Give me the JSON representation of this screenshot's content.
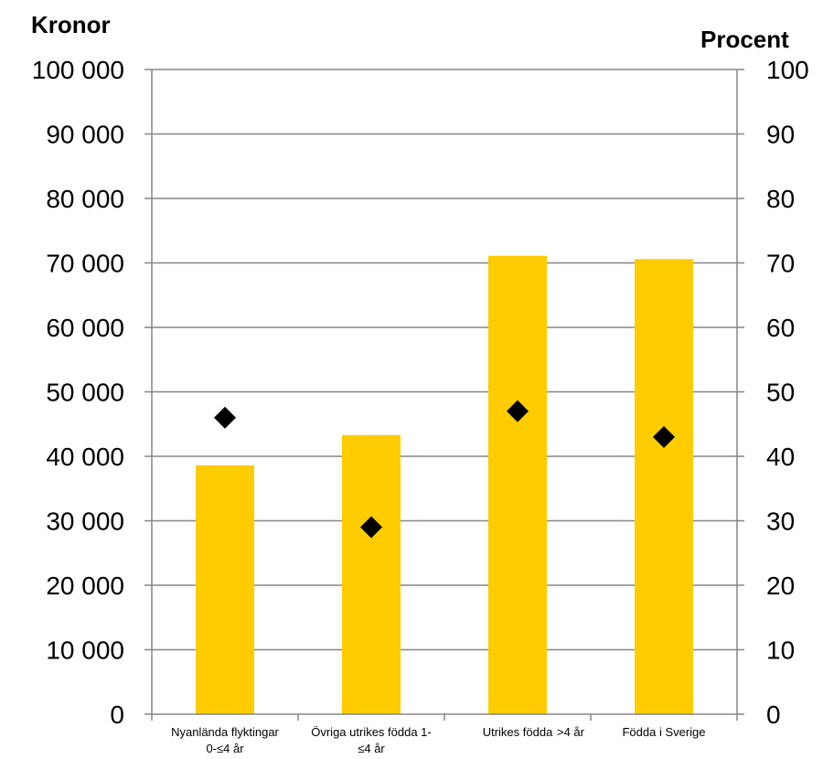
{
  "chart_data": {
    "type": "bar",
    "categories": [
      [
        "Nyanlända flyktingar",
        "0-≤4 år"
      ],
      [
        "Övriga utrikes födda 1-",
        "≤4 år"
      ],
      [
        "Utrikes födda",
        ">4 år"
      ],
      [
        "Födda i Sverige"
      ]
    ],
    "series": [
      {
        "type": "bar",
        "axis": "left",
        "values": [
          38600,
          43300,
          71100,
          70600
        ]
      },
      {
        "type": "scatter",
        "axis": "right",
        "values": [
          46,
          29,
          47,
          43
        ]
      }
    ],
    "left_axis": {
      "title": "Kronor",
      "ylim": [
        0,
        100000
      ],
      "ticks": [
        "0",
        "10 000",
        "20 000",
        "30 000",
        "40 000",
        "50 000",
        "60 000",
        "70 000",
        "80 000",
        "90 000",
        "100 000"
      ]
    },
    "right_axis": {
      "title": "Procent",
      "ylim": [
        0,
        100
      ],
      "ticks": [
        "0",
        "10",
        "20",
        "30",
        "40",
        "50",
        "60",
        "70",
        "80",
        "90",
        "100"
      ]
    },
    "grid": true,
    "colors": {
      "bar": "#FFCC00",
      "marker": "#000000",
      "grid": "#868686"
    }
  }
}
